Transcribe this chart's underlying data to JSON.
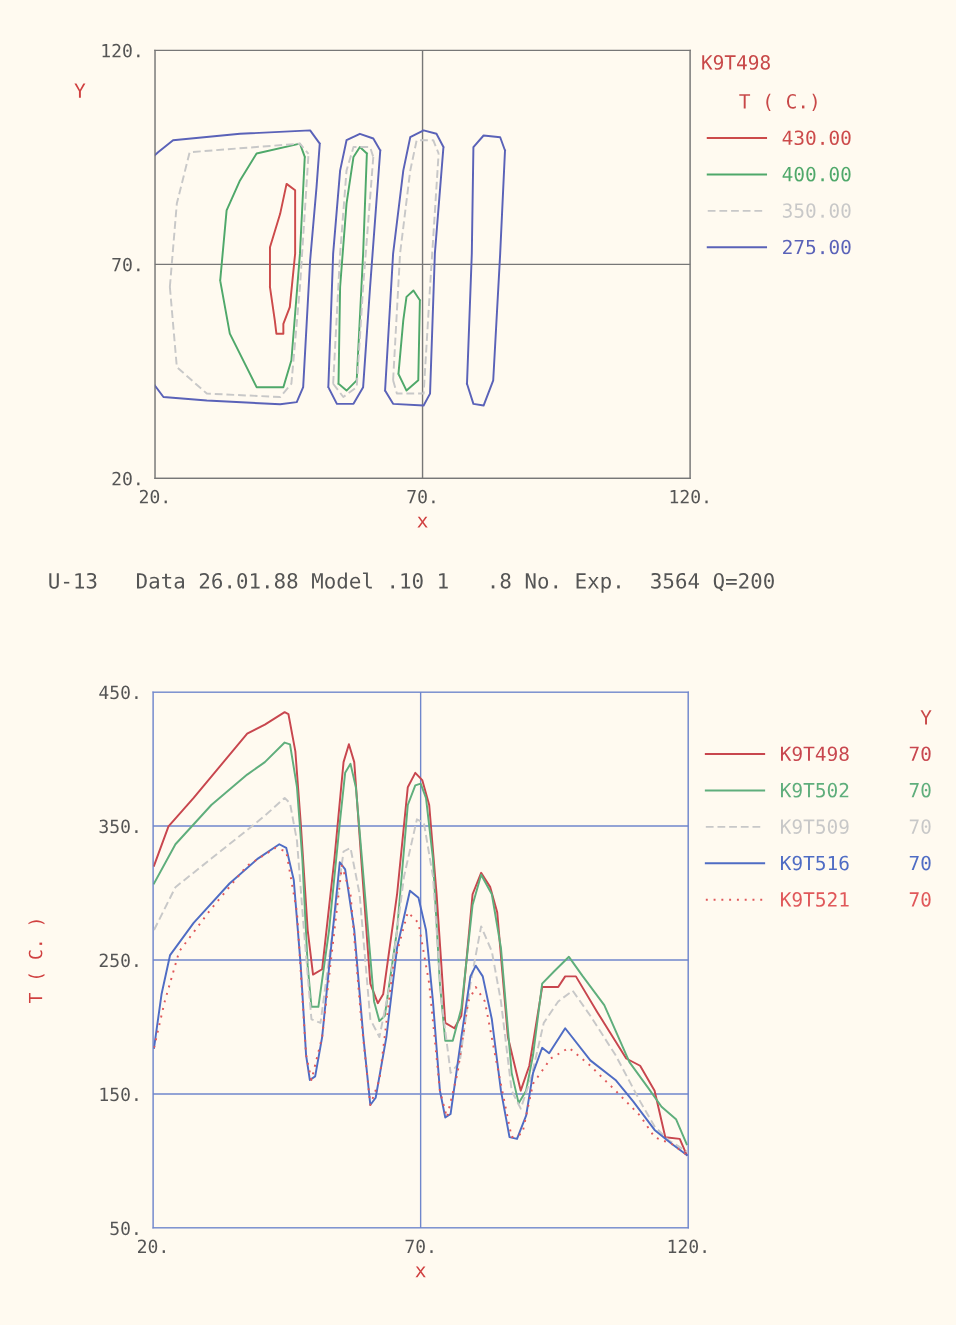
{
  "chart_data": [
    {
      "type": "line",
      "title": "K9T498",
      "legend_title": "T ( C.)",
      "xlabel": "x",
      "ylabel": "Y",
      "annotations": [
        "U-13   Data 26.01.88 Model .10 1   .8 No. Exp.  3564 Q=200"
      ],
      "xlim": [
        20,
        120
      ],
      "ylim": [
        20,
        120
      ],
      "xticks": [
        {
          "value": 20,
          "label": "20."
        },
        {
          "value": 70,
          "label": "70."
        },
        {
          "value": 120,
          "label": "120."
        }
      ],
      "yticks": [
        {
          "value": 20,
          "label": "20."
        },
        {
          "value": 70,
          "label": "70."
        },
        {
          "value": 120,
          "label": "120."
        }
      ],
      "grid": true,
      "legend": "top right",
      "series": [
        {
          "name": "430.00",
          "color": "#cc4a4a",
          "x": [
            41.5,
            41.5,
            43.4,
            44.6,
            46.2,
            46.2,
            null,
            41.5,
            42.4,
            42.7,
            44.0,
            44.0,
            45.2,
            46.2
          ],
          "values": [
            64.7,
            74.0,
            81.8,
            88.8,
            87.3,
            72.5,
            null,
            64.7,
            56.9,
            53.8,
            53.8,
            56.1,
            60.0,
            72.5
          ]
        },
        {
          "name": "400.00",
          "color": "#4fa86a",
          "x": [
            32.2,
            33.4,
            35.9,
            39.0,
            47.1,
            48.0,
            null,
            32.2,
            34.0,
            39.0,
            44.0,
            45.5,
            47.1,
            48.0,
            null,
            54.3,
            54.6,
            55.8,
            57.1,
            58.3,
            59.6,
            null,
            54.3,
            55.8,
            57.7,
            58.9,
            59.6,
            null,
            65.5,
            66.4,
            67.0,
            68.3,
            69.5,
            null,
            65.5,
            67.0,
            69.2,
            69.5
          ],
          "values": [
            66.2,
            82.6,
            89.6,
            95.9,
            98.2,
            95.1,
            null,
            66.2,
            53.8,
            41.3,
            41.3,
            47.6,
            72.5,
            95.1,
            null,
            42.1,
            64.7,
            84.2,
            95.1,
            97.4,
            95.9,
            null,
            42.1,
            40.5,
            42.9,
            72.5,
            95.9,
            null,
            44.4,
            56.9,
            62.4,
            63.9,
            61.6,
            null,
            44.4,
            40.5,
            42.9,
            61.6
          ]
        },
        {
          "name": "350.00",
          "color": "#c8c8c8",
          "line_style": "dashed",
          "x": [
            22.8,
            24.1,
            26.5,
            47.1,
            48.7,
            null,
            22.8,
            24.1,
            29.7,
            43.4,
            45.5,
            47.1,
            48.7,
            null,
            53.3,
            54.6,
            55.8,
            57.1,
            60.2,
            60.8,
            null,
            53.3,
            55.2,
            57.7,
            58.9,
            60.8,
            null,
            64.5,
            65.8,
            67.7,
            68.9,
            72.0,
            73.0,
            null,
            64.5,
            65.2,
            70.2,
            71.4,
            73.0
          ],
          "values": [
            64.7,
            84.2,
            96.2,
            98.2,
            95.8,
            null,
            64.7,
            46.0,
            39.8,
            39.0,
            42.1,
            64.7,
            95.8,
            null,
            42.1,
            72.5,
            91.9,
            97.4,
            97.4,
            95.1,
            null,
            42.1,
            39.0,
            41.3,
            64.7,
            95.1,
            null,
            42.9,
            72.5,
            91.9,
            99.0,
            99.0,
            95.9,
            null,
            42.9,
            39.8,
            39.8,
            64.7,
            95.9
          ]
        },
        {
          "name": "275.00",
          "color": "#5a62b8",
          "x": [
            20.0,
            20.6,
            23.4,
            35.9,
            49.0,
            50.8,
            null,
            20.0,
            21.6,
            29.7,
            43.4,
            46.5,
            47.7,
            49.0,
            50.2,
            50.8,
            null,
            52.4,
            53.3,
            54.6,
            55.8,
            58.3,
            60.8,
            62.1,
            null,
            52.4,
            54.0,
            57.1,
            58.9,
            60.2,
            62.1,
            null,
            63.0,
            64.5,
            66.4,
            67.7,
            70.2,
            72.6,
            73.9,
            null,
            63.0,
            64.5,
            70.2,
            71.4,
            72.3,
            73.9,
            null,
            78.3,
            79.2,
            79.5,
            81.4,
            84.5,
            85.4,
            null,
            78.3,
            79.5,
            81.4,
            83.2,
            84.5,
            85.4
          ],
          "values": [
            95.5,
            96.2,
            99.0,
            100.5,
            101.3,
            98.2,
            null,
            41.7,
            39.0,
            38.2,
            37.3,
            37.8,
            41.3,
            70.9,
            88.1,
            98.2,
            null,
            41.3,
            72.5,
            91.9,
            99.0,
            100.5,
            99.4,
            96.6,
            null,
            41.3,
            37.4,
            37.4,
            41.3,
            64.7,
            96.6,
            null,
            40.5,
            72.5,
            91.9,
            99.7,
            101.3,
            100.5,
            97.4,
            null,
            40.5,
            37.4,
            37.0,
            39.8,
            72.5,
            97.4,
            null,
            42.1,
            72.5,
            97.4,
            100.1,
            99.7,
            96.6,
            null,
            42.1,
            37.4,
            37.0,
            42.9,
            72.5,
            96.6
          ]
        }
      ]
    },
    {
      "type": "line",
      "legend_title": "Y",
      "xlabel": "x",
      "ylabel": "T ( C. )",
      "xlim": [
        20,
        120
      ],
      "ylim": [
        50,
        450
      ],
      "xticks": [
        {
          "value": 20,
          "label": "20."
        },
        {
          "value": 70,
          "label": "70."
        },
        {
          "value": 120,
          "label": "120."
        }
      ],
      "yticks": [
        {
          "value": 50,
          "label": "50."
        },
        {
          "value": 150,
          "label": "150."
        },
        {
          "value": 250,
          "label": "250."
        },
        {
          "value": 350,
          "label": "350."
        },
        {
          "value": 450,
          "label": "450."
        }
      ],
      "grid": true,
      "legend": "top right",
      "series": [
        {
          "name": "K9T498     70",
          "color": "#c8464e",
          "x": [
            20.2,
            22.9,
            27.6,
            37.6,
            40.9,
            44.6,
            45.3,
            46.6,
            47.6,
            48.9,
            49.9,
            51.6,
            53.9,
            55.6,
            56.6,
            57.6,
            58.9,
            60.6,
            62.0,
            63.0,
            65.6,
            67.6,
            69.0,
            70.3,
            71.6,
            72.98,
            74.6,
            76.3,
            77.6,
            79.7,
            81.3,
            83.0,
            84.3,
            86.3,
            88.7,
            90.3,
            92.7,
            95.7,
            97.0,
            99.0,
            103.0,
            108.4,
            111.0,
            113.7,
            115.7,
            118.4,
            119.7
          ],
          "values": [
            320.4,
            349.7,
            371.0,
            419.0,
            425.7,
            435.0,
            433.6,
            405.7,
            352.4,
            272.4,
            239.1,
            243.1,
            325.7,
            397.7,
            411.0,
            397.7,
            325.7,
            232.4,
            217.8,
            224.4,
            299.1,
            379.0,
            389.7,
            384.3,
            365.7,
            299.1,
            203.1,
            199.1,
            208.4,
            299.1,
            315.1,
            304.4,
            285.7,
            192.5,
            152.5,
            171.1,
            229.8,
            229.8,
            237.8,
            237.8,
            211.1,
            176.5,
            171.1,
            152.5,
            117.8,
            116.5,
            104.5
          ]
        },
        {
          "name": "K9T502     70",
          "color": "#5fae7c",
          "x": [
            20.2,
            24.2,
            30.9,
            37.6,
            40.9,
            44.6,
            45.6,
            46.9,
            47.9,
            48.9,
            49.6,
            50.9,
            52.9,
            54.9,
            55.9,
            56.9,
            57.9,
            59.6,
            61.3,
            62.3,
            63.3,
            65.6,
            67.6,
            69.0,
            70.0,
            71.0,
            72.3,
            73.6,
            74.6,
            76.0,
            77.6,
            79.7,
            81.3,
            83.3,
            85.0,
            87.0,
            88.3,
            89.7,
            91.0,
            92.7,
            95.0,
            97.7,
            100.3,
            104.3,
            109.0,
            112.4,
            115.0,
            117.7,
            119.7
          ],
          "values": [
            307.1,
            336.4,
            365.7,
            388.4,
            397.7,
            412.3,
            411.0,
            379.0,
            325.7,
            245.8,
            215.1,
            215.1,
            272.4,
            352.4,
            389.7,
            396.4,
            379.0,
            299.1,
            219.1,
            204.4,
            208.4,
            272.4,
            365.7,
            380.3,
            381.7,
            371.0,
            325.7,
            232.4,
            189.8,
            189.8,
            213.8,
            291.1,
            313.7,
            299.1,
            259.1,
            165.8,
            143.2,
            152.5,
            179.1,
            232.4,
            241.8,
            252.4,
            237.8,
            216.4,
            173.8,
            155.2,
            140.5,
            131.2,
            112.5
          ]
        },
        {
          "name": "K9T509     70",
          "color": "#c8c8c8",
          "line_style": "dashed",
          "x": [
            20.2,
            24.2,
            30.9,
            37.6,
            40.9,
            44.6,
            45.6,
            46.9,
            48.2,
            49.6,
            51.3,
            53.6,
            55.6,
            56.9,
            58.6,
            60.6,
            62.3,
            64.3,
            66.9,
            69.3,
            70.6,
            72.3,
            73.9,
            75.6,
            77.3,
            79.3,
            81.3,
            83.3,
            85.0,
            87.0,
            88.7,
            90.7,
            93.0,
            95.7,
            98.4,
            101.7,
            106.4,
            111.0,
            113.7,
            116.4,
            119.7
          ],
          "values": [
            272.4,
            304.4,
            325.7,
            347.0,
            357.7,
            371.0,
            367.0,
            339.0,
            272.4,
            205.8,
            203.1,
            272.4,
            331.0,
            333.7,
            299.1,
            205.8,
            192.5,
            232.4,
            312.4,
            355.0,
            352.4,
            312.4,
            219.1,
            165.8,
            173.8,
            232.4,
            275.1,
            256.4,
            219.1,
            152.5,
            139.1,
            163.1,
            203.1,
            219.1,
            227.1,
            208.4,
            179.1,
            144.5,
            125.8,
            115.2,
            107.2
          ]
        },
        {
          "name": "K9T516     70",
          "color": "#4f6cc4",
          "x": [
            20.2,
            21.6,
            23.2,
            27.6,
            34.3,
            39.6,
            43.6,
            44.9,
            46.3,
            47.6,
            48.6,
            49.3,
            50.3,
            51.6,
            53.6,
            54.9,
            55.9,
            57.6,
            59.3,
            60.6,
            61.6,
            63.6,
            65.6,
            68.0,
            69.6,
            71.0,
            72.3,
            73.6,
            74.6,
            75.6,
            77.6,
            79.3,
            80.3,
            81.6,
            83.3,
            85.0,
            86.6,
            88.0,
            89.7,
            91.0,
            92.7,
            94.0,
            97.0,
            101.7,
            106.4,
            109.7,
            113.7,
            117.0,
            119.7
          ],
          "values": [
            184.5,
            224.4,
            253.7,
            277.7,
            307.1,
            325.7,
            336.4,
            333.7,
            309.7,
            245.8,
            179.1,
            160.5,
            163.2,
            192.5,
            272.4,
            323.0,
            317.7,
            272.4,
            192.5,
            141.8,
            147.2,
            192.5,
            259.1,
            301.7,
            296.4,
            272.4,
            219.1,
            152.5,
            132.5,
            135.2,
            192.5,
            237.8,
            245.8,
            237.8,
            205.8,
            152.5,
            117.8,
            116.5,
            133.8,
            165.8,
            184.5,
            180.5,
            199.1,
            175.1,
            160.5,
            144.5,
            123.2,
            112.5,
            104.5
          ]
        },
        {
          "name": "K9T521     70",
          "color": "#e0585a",
          "line_style": "dotted",
          "x": [
            20.2,
            22.2,
            24.9,
            30.9,
            37.6,
            42.9,
            44.9,
            46.9,
            48.6,
            49.6,
            51.6,
            53.9,
            55.3,
            56.9,
            58.9,
            60.6,
            62.3,
            64.9,
            67.6,
            69.6,
            71.6,
            73.6,
            74.9,
            76.9,
            78.9,
            80.3,
            82.0,
            84.3,
            87.0,
            89.0,
            91.0,
            94.3,
            97.7,
            101.7,
            106.4,
            111.0,
            113.7,
            117.0,
            119.7
          ],
          "values": [
            184.5,
            219.1,
            256.4,
            288.4,
            320.4,
            333.7,
            331.0,
            285.7,
            179.1,
            160.5,
            192.5,
            272.4,
            320.4,
            299.1,
            205.8,
            141.8,
            160.5,
            245.8,
            285.7,
            277.7,
            232.4,
            152.5,
            132.5,
            165.8,
            219.1,
            229.8,
            219.1,
            171.1,
            117.8,
            120.5,
            157.8,
            176.5,
            184.5,
            171.1,
            152.5,
            133.8,
            117.8,
            112.5,
            104.5
          ]
        }
      ]
    }
  ]
}
